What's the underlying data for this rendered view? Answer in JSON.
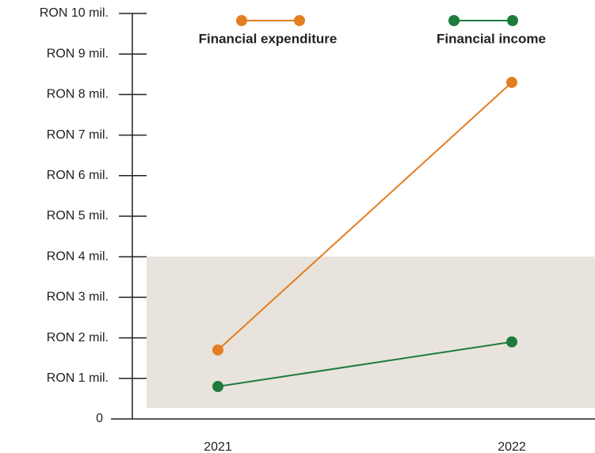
{
  "chart_data": {
    "type": "line",
    "categories": [
      "2021",
      "2022"
    ],
    "series": [
      {
        "name": "Financial expenditure",
        "color": "#e37e22",
        "values": [
          1.7,
          8.3
        ]
      },
      {
        "name": "Financial income",
        "color": "#1e7b3d",
        "values": [
          0.8,
          1.9
        ]
      }
    ],
    "ylim": [
      0,
      10
    ],
    "yticks": [
      0,
      {
        "value": 1,
        "label": "RON 1 mil."
      },
      {
        "value": 2,
        "label": "RON 2 mil."
      },
      {
        "value": 3,
        "label": "RON 3 mil."
      },
      {
        "value": 4,
        "label": "RON 4 mil."
      },
      {
        "value": 5,
        "label": "RON 5 mil."
      },
      {
        "value": 6,
        "label": "RON 6 mil."
      },
      {
        "value": 7,
        "label": "RON 7 mil."
      },
      {
        "value": 8,
        "label": "RON 8 mil."
      },
      {
        "value": 9,
        "label": "RON 9 mil."
      },
      {
        "value": 10,
        "label": "RON 10 mil."
      }
    ],
    "legend": "top"
  }
}
